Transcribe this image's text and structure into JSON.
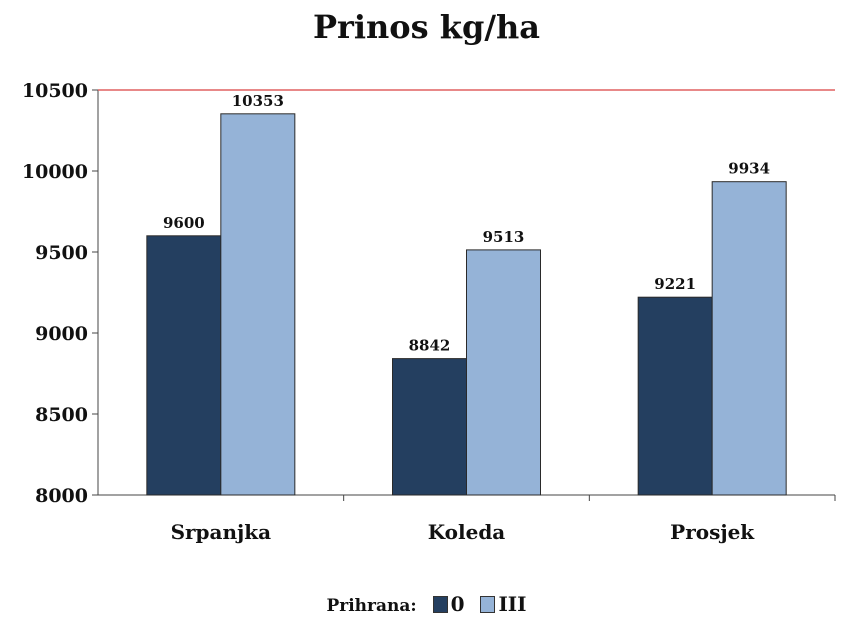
{
  "chart_data": {
    "type": "bar",
    "title": "Prinos kg/ha",
    "xlabel": "",
    "ylabel": "",
    "categories": [
      "Srpanjka",
      "Koleda",
      "Prosjek"
    ],
    "series": [
      {
        "name": "0",
        "values": [
          9600,
          8842,
          9221
        ],
        "color": "#243f60"
      },
      {
        "name": "III",
        "values": [
          10353,
          9513,
          9934
        ],
        "color": "#95b3d7"
      }
    ],
    "ylim": [
      8000,
      10500
    ],
    "yticks": [
      8000,
      8500,
      9000,
      9500,
      10000,
      10500
    ],
    "grid": false,
    "reference_line": {
      "value": 10500,
      "color": "#e06060"
    },
    "legend": {
      "title": "Prihrana:",
      "placement": "bottom"
    }
  }
}
